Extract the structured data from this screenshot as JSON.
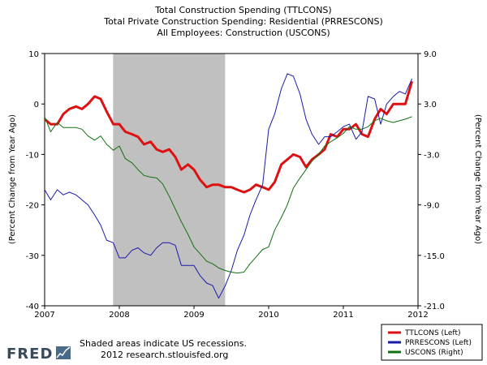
{
  "chart_data": {
    "type": "line",
    "title_lines": [
      "Total Construction Spending (TTLCONS)",
      "Total Private Construction Spending: Residential (PRRESCONS)",
      "All Employees: Construction (USCONS)"
    ],
    "ylabel_left": "(Percent Change from Year Ago)",
    "ylabel_right": "(Percent Change from Year Ago)",
    "x_range": [
      2007,
      2012
    ],
    "x_ticks": [
      "2007",
      "2008",
      "2009",
      "2010",
      "2011",
      "2012"
    ],
    "y_left_range": [
      -40,
      10
    ],
    "y_left_ticks": [
      "10",
      "0",
      "-10",
      "-20",
      "-30",
      "-40"
    ],
    "y_right_range": [
      -21,
      9
    ],
    "y_right_ticks": [
      "9.0",
      "3.0",
      "-3.0",
      "-9.0",
      "-15.0",
      "-21.0"
    ],
    "recession": [
      2007.917,
      2009.417
    ],
    "grid": false,
    "legend_position": "bottom-right",
    "series": [
      {
        "name": "TTLCONS (Left)",
        "axis": "left",
        "color": "#dd1111",
        "x": [
          2007.0,
          2007.08,
          2007.17,
          2007.25,
          2007.33,
          2007.42,
          2007.5,
          2007.58,
          2007.67,
          2007.75,
          2007.83,
          2007.92,
          2008.0,
          2008.08,
          2008.17,
          2008.25,
          2008.33,
          2008.42,
          2008.5,
          2008.58,
          2008.67,
          2008.75,
          2008.83,
          2008.92,
          2009.0,
          2009.08,
          2009.17,
          2009.25,
          2009.33,
          2009.42,
          2009.5,
          2009.58,
          2009.67,
          2009.75,
          2009.83,
          2009.92,
          2010.0,
          2010.08,
          2010.17,
          2010.25,
          2010.33,
          2010.42,
          2010.5,
          2010.58,
          2010.67,
          2010.75,
          2010.83,
          2010.92,
          2011.0,
          2011.08,
          2011.17,
          2011.25,
          2011.33,
          2011.42,
          2011.5,
          2011.58,
          2011.67,
          2011.75,
          2011.83,
          2011.92
        ],
        "values": [
          -3,
          -4,
          -4,
          -2,
          -1,
          -0.5,
          -1,
          0,
          1.5,
          1,
          -1.5,
          -4,
          -4,
          -5.5,
          -6,
          -6.5,
          -8,
          -7.5,
          -9,
          -9.5,
          -9,
          -10.5,
          -13,
          -12,
          -13,
          -15,
          -16.5,
          -16,
          -16,
          -16.5,
          -16.5,
          -17,
          -17.5,
          -17,
          -16,
          -16.5,
          -17,
          -15.5,
          -12,
          -11,
          -10,
          -10.5,
          -12.5,
          -11,
          -10,
          -9,
          -6,
          -6.5,
          -5,
          -5,
          -4,
          -6,
          -6.5,
          -3,
          -1,
          -2,
          0,
          0,
          0,
          4.5
        ]
      },
      {
        "name": "PRRESCONS (Left)",
        "axis": "left",
        "color": "#1a1aaa",
        "x": [
          2007.0,
          2007.08,
          2007.17,
          2007.25,
          2007.33,
          2007.42,
          2007.5,
          2007.58,
          2007.67,
          2007.75,
          2007.83,
          2007.92,
          2008.0,
          2008.08,
          2008.17,
          2008.25,
          2008.33,
          2008.42,
          2008.5,
          2008.58,
          2008.67,
          2008.75,
          2008.83,
          2008.92,
          2009.0,
          2009.08,
          2009.17,
          2009.25,
          2009.33,
          2009.42,
          2009.5,
          2009.58,
          2009.67,
          2009.75,
          2009.83,
          2009.92,
          2010.0,
          2010.08,
          2010.17,
          2010.25,
          2010.33,
          2010.42,
          2010.5,
          2010.58,
          2010.67,
          2010.75,
          2010.83,
          2010.92,
          2011.0,
          2011.08,
          2011.17,
          2011.25,
          2011.33,
          2011.42,
          2011.5,
          2011.58,
          2011.67,
          2011.75,
          2011.83,
          2011.92
        ],
        "values": [
          -17,
          -19,
          -17,
          -18,
          -17.5,
          -18,
          -19,
          -20,
          -22,
          -24,
          -27,
          -27.5,
          -30.5,
          -30.5,
          -29,
          -28.5,
          -29.5,
          -30,
          -28.5,
          -27.5,
          -27.5,
          -28,
          -32,
          -32,
          -32,
          -34,
          -35.5,
          -36,
          -38.5,
          -36,
          -33,
          -29,
          -26,
          -22,
          -19,
          -16,
          -5,
          -2,
          3,
          6,
          5.5,
          2,
          -3,
          -6,
          -8,
          -6.5,
          -6.5,
          -5.5,
          -4.5,
          -4,
          -7,
          -5.5,
          1.5,
          1,
          -4,
          0,
          1.5,
          2.5,
          2,
          5
        ]
      },
      {
        "name": "USCONS (Right)",
        "axis": "right",
        "color": "#107010",
        "x": [
          2007.0,
          2007.08,
          2007.17,
          2007.25,
          2007.33,
          2007.42,
          2007.5,
          2007.58,
          2007.67,
          2007.75,
          2007.83,
          2007.92,
          2008.0,
          2008.08,
          2008.17,
          2008.25,
          2008.33,
          2008.42,
          2008.5,
          2008.58,
          2008.67,
          2008.75,
          2008.83,
          2008.92,
          2009.0,
          2009.08,
          2009.17,
          2009.25,
          2009.33,
          2009.42,
          2009.5,
          2009.58,
          2009.67,
          2009.75,
          2009.83,
          2009.92,
          2010.0,
          2010.08,
          2010.17,
          2010.25,
          2010.33,
          2010.42,
          2010.5,
          2010.58,
          2010.67,
          2010.75,
          2010.83,
          2010.92,
          2011.0,
          2011.08,
          2011.17,
          2011.25,
          2011.33,
          2011.42,
          2011.5,
          2011.58,
          2011.67,
          2011.75,
          2011.83,
          2011.92
        ],
        "values": [
          1.5,
          -0.3,
          0.8,
          0.2,
          0.2,
          0.2,
          0,
          -0.8,
          -1.3,
          -0.8,
          -1.8,
          -2.5,
          -2,
          -3.5,
          -4,
          -4.8,
          -5.5,
          -5.7,
          -5.8,
          -6.5,
          -8,
          -9.5,
          -11,
          -12.5,
          -14,
          -14.8,
          -15.7,
          -16,
          -16.5,
          -16.8,
          -17,
          -17.1,
          -17,
          -16,
          -15.2,
          -14.3,
          -14,
          -12,
          -10.5,
          -9,
          -7,
          -5.8,
          -4.8,
          -3.8,
          -3,
          -2,
          -1.5,
          -1,
          -0.5,
          0.3,
          0,
          0,
          0.3,
          1,
          1.3,
          1,
          0.8,
          1,
          1.2,
          1.5
        ]
      }
    ]
  },
  "footer": {
    "logo": "FRED",
    "note": "Shaded areas indicate US recessions.",
    "source": "2012 research.stlouisfed.org"
  }
}
